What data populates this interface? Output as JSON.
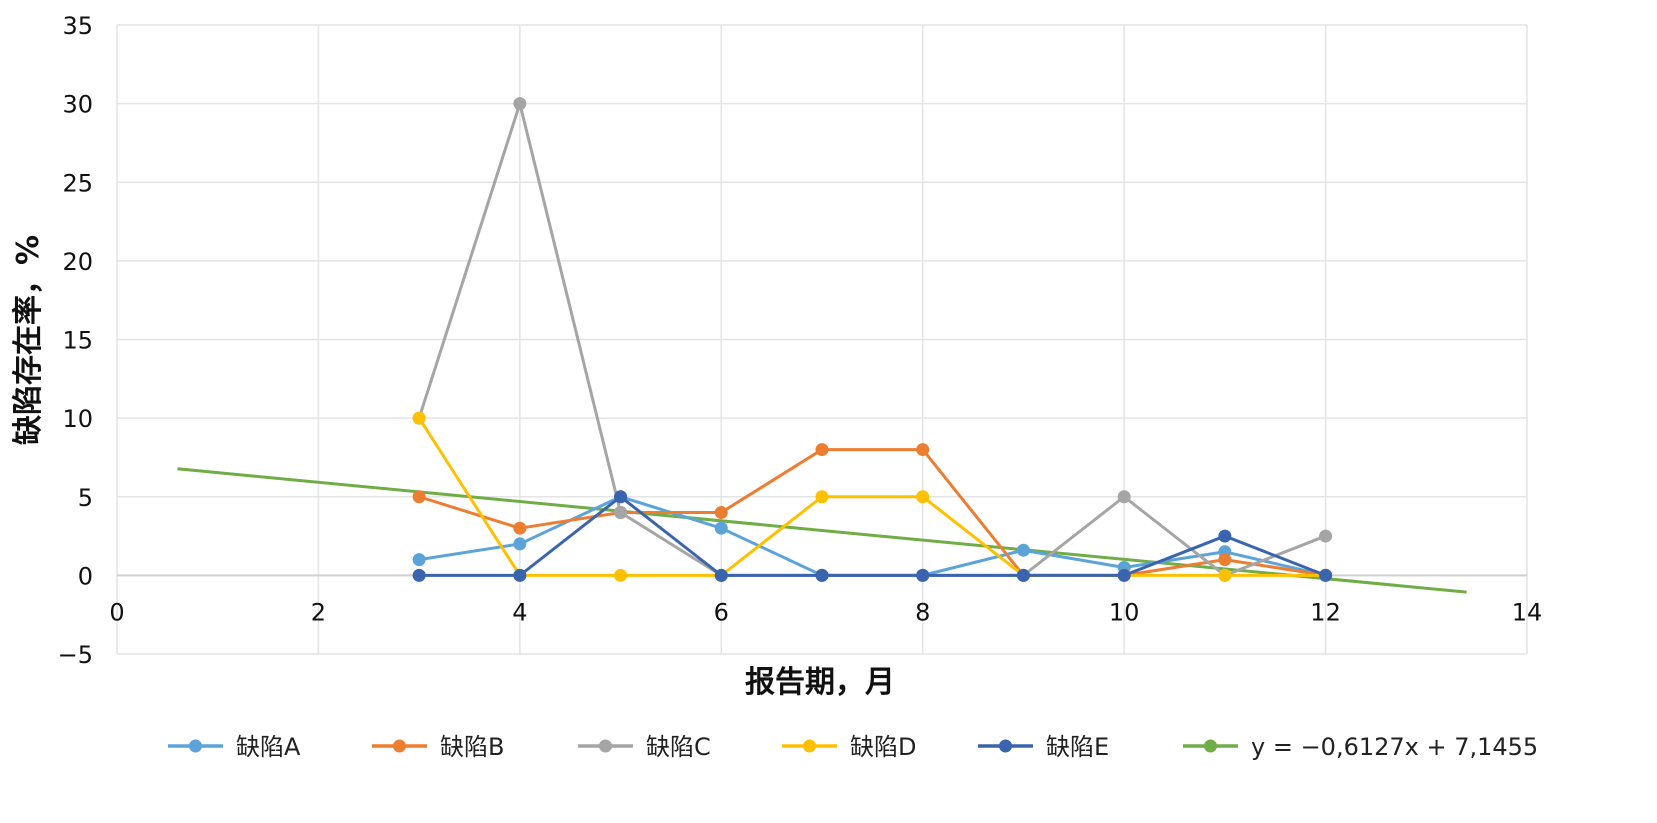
{
  "chart_data": {
    "type": "line",
    "title": "",
    "xlabel": "报告期，月",
    "ylabel": "缺陷存在率，%",
    "xlim": [
      0,
      14
    ],
    "ylim": [
      -5,
      35
    ],
    "x_ticks": [
      0,
      2,
      4,
      6,
      8,
      10,
      12,
      14
    ],
    "y_ticks": [
      -5,
      0,
      5,
      10,
      15,
      20,
      25,
      30,
      35
    ],
    "x_tick_labels": [
      "0",
      "2",
      "4",
      "6",
      "8",
      "10",
      "12",
      "14"
    ],
    "y_tick_labels": [
      "−5",
      "0",
      "5",
      "10",
      "15",
      "20",
      "25",
      "30",
      "35"
    ],
    "grid": true,
    "legend_position": "bottom",
    "x": [
      3,
      4,
      5,
      6,
      7,
      8,
      9,
      10,
      11,
      12
    ],
    "series": [
      {
        "name": "缺陷A",
        "color": "#5ba3d9",
        "values": [
          1,
          2,
          5,
          3,
          0,
          0,
          1.6,
          0.5,
          1.5,
          0
        ]
      },
      {
        "name": "缺陷B",
        "color": "#ed7d31",
        "values": [
          5,
          3,
          4,
          4,
          8,
          8,
          0,
          0,
          1,
          0
        ]
      },
      {
        "name": "缺陷C",
        "color": "#a5a5a5",
        "values": [
          10,
          30,
          4,
          0,
          0,
          0,
          0,
          5,
          0,
          2.5
        ]
      },
      {
        "name": "缺陷D",
        "color": "#ffc000",
        "values": [
          10,
          0,
          0,
          0,
          5,
          5,
          0,
          0,
          0,
          0
        ]
      },
      {
        "name": "缺陷E",
        "color": "#3a64ad",
        "values": [
          0,
          0,
          5,
          0,
          0,
          0,
          0,
          0,
          2.5,
          0
        ]
      }
    ],
    "trendline": {
      "name": "y = −0,6127x + 7,1455",
      "color": "#70ad47",
      "slope": -0.6127,
      "intercept": 7.1455,
      "x_range": [
        0.6,
        13.4
      ]
    }
  }
}
